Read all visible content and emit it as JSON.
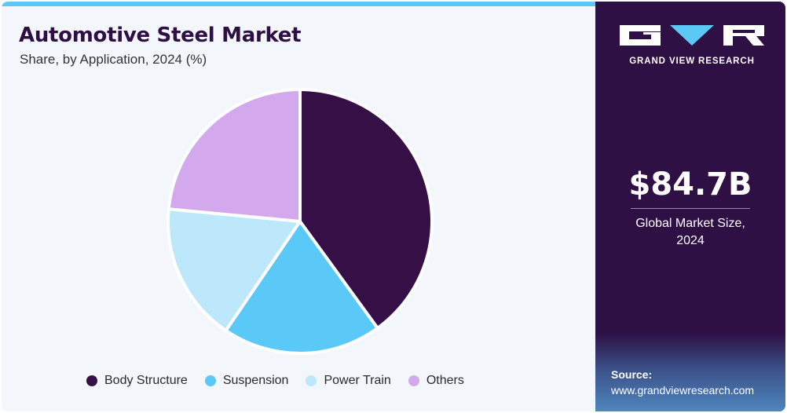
{
  "header": {
    "title": "Automotive Steel Market",
    "subtitle": "Share, by Application, 2024 (%)"
  },
  "brand": {
    "name": "GRAND VIEW RESEARCH",
    "logo_icon": "gvr-logo-icon"
  },
  "market": {
    "size": "$84.7B",
    "label_line1": "Global Market Size,",
    "label_line2": "2024"
  },
  "source": {
    "label": "Source:",
    "url": "www.grandviewresearch.com"
  },
  "colors": {
    "accent": "#5cc8f5",
    "panel": "#2e1045",
    "title": "#2e0f45"
  },
  "chart_data": {
    "type": "pie",
    "title": "Automotive Steel Market",
    "subtitle": "Share, by Application, 2024 (%)",
    "legend_position": "bottom",
    "categories": [
      "Body Structure",
      "Suspension",
      "Power Train",
      "Others"
    ],
    "values": [
      40,
      19.5,
      17,
      23.5
    ],
    "colors": [
      "#370f47",
      "#5bc9f7",
      "#bde8fb",
      "#d3a8ec"
    ]
  }
}
